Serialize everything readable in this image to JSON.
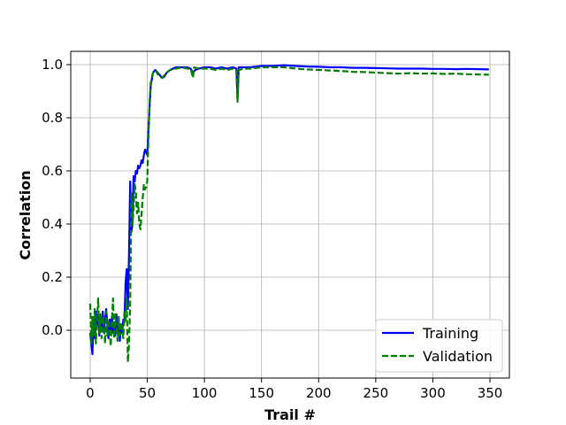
{
  "chart_data": {
    "type": "line",
    "title": "",
    "xlabel": "Trail #",
    "ylabel": "Correlation",
    "xlim": [
      -17,
      367
    ],
    "ylim": [
      -0.18,
      1.05
    ],
    "xticks": [
      0,
      50,
      100,
      150,
      200,
      250,
      300,
      350
    ],
    "yticks": [
      0.0,
      0.2,
      0.4,
      0.6,
      0.8,
      1.0
    ],
    "xtick_labels": [
      "0",
      "50",
      "100",
      "150",
      "200",
      "250",
      "300",
      "350"
    ],
    "ytick_labels": [
      "0.0",
      "0.2",
      "0.4",
      "0.6",
      "0.8",
      "1.0"
    ],
    "grid": true,
    "legend_position": "lower-right",
    "series": [
      {
        "name": "Training",
        "color": "#0000ff",
        "style": "solid",
        "points": [
          [
            0,
            -0.01
          ],
          [
            2,
            -0.09
          ],
          [
            3,
            0.05
          ],
          [
            4,
            -0.03
          ],
          [
            5,
            0.07
          ],
          [
            6,
            0.02
          ],
          [
            7,
            0.06
          ],
          [
            8,
            -0.02
          ],
          [
            9,
            0.05
          ],
          [
            10,
            0.0
          ],
          [
            11,
            0.07
          ],
          [
            12,
            -0.01
          ],
          [
            13,
            0.04
          ],
          [
            14,
            0.08
          ],
          [
            15,
            0.03
          ],
          [
            16,
            -0.03
          ],
          [
            17,
            0.04
          ],
          [
            18,
            0.0
          ],
          [
            19,
            0.05
          ],
          [
            20,
            -0.01
          ],
          [
            21,
            0.03
          ],
          [
            22,
            -0.02
          ],
          [
            23,
            0.06
          ],
          [
            24,
            0.0
          ],
          [
            25,
            0.03
          ],
          [
            26,
            -0.04
          ],
          [
            27,
            0.02
          ],
          [
            28,
            -0.01
          ],
          [
            29,
            0.04
          ],
          [
            30,
            0.03
          ],
          [
            31,
            0.18
          ],
          [
            32,
            0.23
          ],
          [
            33,
            0.08
          ],
          [
            34,
            0.29
          ],
          [
            35,
            0.56
          ],
          [
            36,
            0.37
          ],
          [
            37,
            0.4
          ],
          [
            38,
            0.58
          ],
          [
            39,
            0.56
          ],
          [
            40,
            0.6
          ],
          [
            41,
            0.59
          ],
          [
            42,
            0.62
          ],
          [
            43,
            0.61
          ],
          [
            44,
            0.62
          ],
          [
            45,
            0.64
          ],
          [
            46,
            0.63
          ],
          [
            47,
            0.66
          ],
          [
            48,
            0.68
          ],
          [
            49,
            0.67
          ],
          [
            50,
            0.66
          ],
          [
            51,
            0.75
          ],
          [
            52,
            0.84
          ],
          [
            53,
            0.92
          ],
          [
            55,
            0.97
          ],
          [
            57,
            0.98
          ],
          [
            59,
            0.97
          ],
          [
            61,
            0.96
          ],
          [
            63,
            0.95
          ],
          [
            65,
            0.955
          ],
          [
            67,
            0.97
          ],
          [
            70,
            0.98
          ],
          [
            75,
            0.99
          ],
          [
            80,
            0.99
          ],
          [
            85,
            0.99
          ],
          [
            88,
            0.985
          ],
          [
            90,
            0.97
          ],
          [
            92,
            0.98
          ],
          [
            95,
            0.985
          ],
          [
            100,
            0.99
          ],
          [
            105,
            0.99
          ],
          [
            110,
            0.985
          ],
          [
            115,
            0.99
          ],
          [
            120,
            0.985
          ],
          [
            125,
            0.99
          ],
          [
            128,
            0.985
          ],
          [
            129,
            0.87
          ],
          [
            130,
            0.99
          ],
          [
            135,
            0.99
          ],
          [
            140,
            0.99
          ],
          [
            150,
            0.995
          ],
          [
            160,
            0.995
          ],
          [
            170,
            0.998
          ],
          [
            180,
            0.995
          ],
          [
            190,
            0.993
          ],
          [
            200,
            0.992
          ],
          [
            210,
            0.99
          ],
          [
            220,
            0.99
          ],
          [
            230,
            0.988
          ],
          [
            240,
            0.988
          ],
          [
            250,
            0.987
          ],
          [
            260,
            0.986
          ],
          [
            270,
            0.985
          ],
          [
            280,
            0.985
          ],
          [
            290,
            0.985
          ],
          [
            300,
            0.984
          ],
          [
            310,
            0.984
          ],
          [
            320,
            0.983
          ],
          [
            330,
            0.984
          ],
          [
            340,
            0.983
          ],
          [
            349,
            0.982
          ]
        ]
      },
      {
        "name": "Validation",
        "color": "#008000",
        "style": "dashed",
        "points": [
          [
            0,
            0.1
          ],
          [
            1,
            -0.05
          ],
          [
            2,
            0.05
          ],
          [
            3,
            -0.02
          ],
          [
            4,
            0.08
          ],
          [
            5,
            -0.05
          ],
          [
            6,
            0.04
          ],
          [
            7,
            0.12
          ],
          [
            8,
            -0.01
          ],
          [
            9,
            0.06
          ],
          [
            10,
            -0.03
          ],
          [
            11,
            0.05
          ],
          [
            12,
            0.02
          ],
          [
            13,
            -0.05
          ],
          [
            14,
            0.07
          ],
          [
            15,
            -0.02
          ],
          [
            16,
            0.04
          ],
          [
            17,
            0.01
          ],
          [
            18,
            -0.06
          ],
          [
            19,
            0.03
          ],
          [
            20,
            0.12
          ],
          [
            21,
            -0.03
          ],
          [
            22,
            0.06
          ],
          [
            23,
            0.01
          ],
          [
            24,
            -0.04
          ],
          [
            25,
            0.05
          ],
          [
            26,
            -0.02
          ],
          [
            27,
            0.03
          ],
          [
            28,
            0.01
          ],
          [
            29,
            -0.03
          ],
          [
            30,
            0.07
          ],
          [
            31,
            0.03
          ],
          [
            32,
            0.12
          ],
          [
            33,
            -0.12
          ],
          [
            34,
            -0.05
          ],
          [
            35,
            0.1
          ],
          [
            36,
            0.52
          ],
          [
            37,
            0.4
          ],
          [
            38,
            0.45
          ],
          [
            39,
            0.55
          ],
          [
            40,
            0.52
          ],
          [
            41,
            0.44
          ],
          [
            42,
            0.48
          ],
          [
            43,
            0.4
          ],
          [
            44,
            0.38
          ],
          [
            45,
            0.44
          ],
          [
            46,
            0.5
          ],
          [
            47,
            0.55
          ],
          [
            48,
            0.53
          ],
          [
            49,
            0.54
          ],
          [
            50,
            0.56
          ],
          [
            51,
            0.72
          ],
          [
            52,
            0.86
          ],
          [
            53,
            0.93
          ],
          [
            55,
            0.97
          ],
          [
            57,
            0.98
          ],
          [
            59,
            0.965
          ],
          [
            61,
            0.955
          ],
          [
            63,
            0.95
          ],
          [
            65,
            0.96
          ],
          [
            67,
            0.97
          ],
          [
            70,
            0.98
          ],
          [
            75,
            0.985
          ],
          [
            80,
            0.99
          ],
          [
            85,
            0.985
          ],
          [
            88,
            0.985
          ],
          [
            90,
            0.95
          ],
          [
            91,
            0.99
          ],
          [
            95,
            0.985
          ],
          [
            100,
            0.985
          ],
          [
            105,
            0.985
          ],
          [
            110,
            0.98
          ],
          [
            115,
            0.985
          ],
          [
            120,
            0.98
          ],
          [
            125,
            0.985
          ],
          [
            128,
            0.98
          ],
          [
            129,
            0.86
          ],
          [
            130,
            0.98
          ],
          [
            135,
            0.985
          ],
          [
            140,
            0.985
          ],
          [
            150,
            0.99
          ],
          [
            160,
            0.99
          ],
          [
            170,
            0.99
          ],
          [
            180,
            0.985
          ],
          [
            190,
            0.982
          ],
          [
            200,
            0.98
          ],
          [
            210,
            0.978
          ],
          [
            220,
            0.976
          ],
          [
            230,
            0.973
          ],
          [
            240,
            0.972
          ],
          [
            250,
            0.97
          ],
          [
            260,
            0.968
          ],
          [
            270,
            0.966
          ],
          [
            280,
            0.968
          ],
          [
            290,
            0.966
          ],
          [
            300,
            0.967
          ],
          [
            310,
            0.965
          ],
          [
            320,
            0.966
          ],
          [
            330,
            0.964
          ],
          [
            340,
            0.963
          ],
          [
            349,
            0.962
          ]
        ]
      }
    ]
  }
}
